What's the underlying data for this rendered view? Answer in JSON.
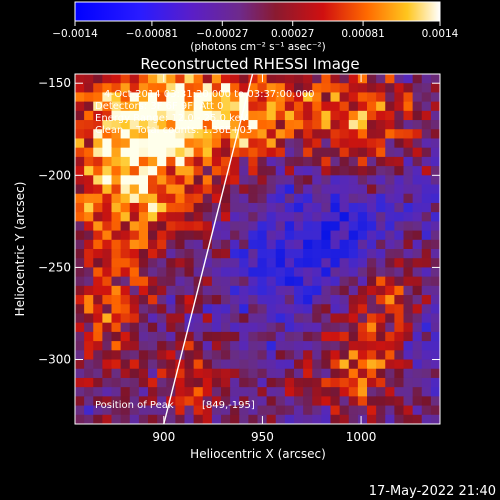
{
  "chart_data": {
    "type": "heatmap",
    "title": "Reconstructed RHESSI Image",
    "xlabel": "Heliocentric X (arcsec)",
    "ylabel": "Heliocentric Y (arcsec)",
    "xlim": [
      855,
      1040
    ],
    "ylim": [
      -335,
      -145
    ],
    "x_ticks": [
      900,
      950,
      1000
    ],
    "x_tick_labels": [
      "900",
      "950",
      "1000"
    ],
    "y_ticks": [
      -150,
      -200,
      -250,
      -300
    ],
    "y_tick_labels": [
      "−150",
      "−200",
      "−250",
      "−300"
    ],
    "colorbar": {
      "range": [
        -0.0014,
        0.0014
      ],
      "ticks": [
        -0.0014,
        -0.00081,
        -0.00027,
        0.00027,
        0.00081,
        0.0014
      ],
      "tick_labels": [
        "−0.0014",
        "−0.00081",
        "−0.00027",
        "0.00027",
        "0.00081",
        "0.0014"
      ],
      "unit_label": "(photons cm⁻² s⁻¹ asec⁻²)",
      "colormap": "rhessi blue-purple-red-yellow-white"
    },
    "annotations": {
      "time_range": "4-Oct-2014 03:31:20.000 to 03:37:00.000",
      "detectors": "Detectors: 3F 6F 9F, Att 0",
      "energy_range": "Energy Range: 12.0 - 25.0 keV",
      "clean_counts": "Clean    Total counts: 1.36E+03",
      "peak_label": "Position of Peak",
      "peak_value": "[849,-195]"
    },
    "limb_line": {
      "x": [
        900,
        945
      ],
      "y": [
        -335,
        -145
      ]
    },
    "grid": false
  },
  "footer": {
    "timestamp": "17-May-2022 21:40"
  },
  "colors": {
    "background": "#000000",
    "text": "#ffffff",
    "limb": "#ffffff"
  }
}
